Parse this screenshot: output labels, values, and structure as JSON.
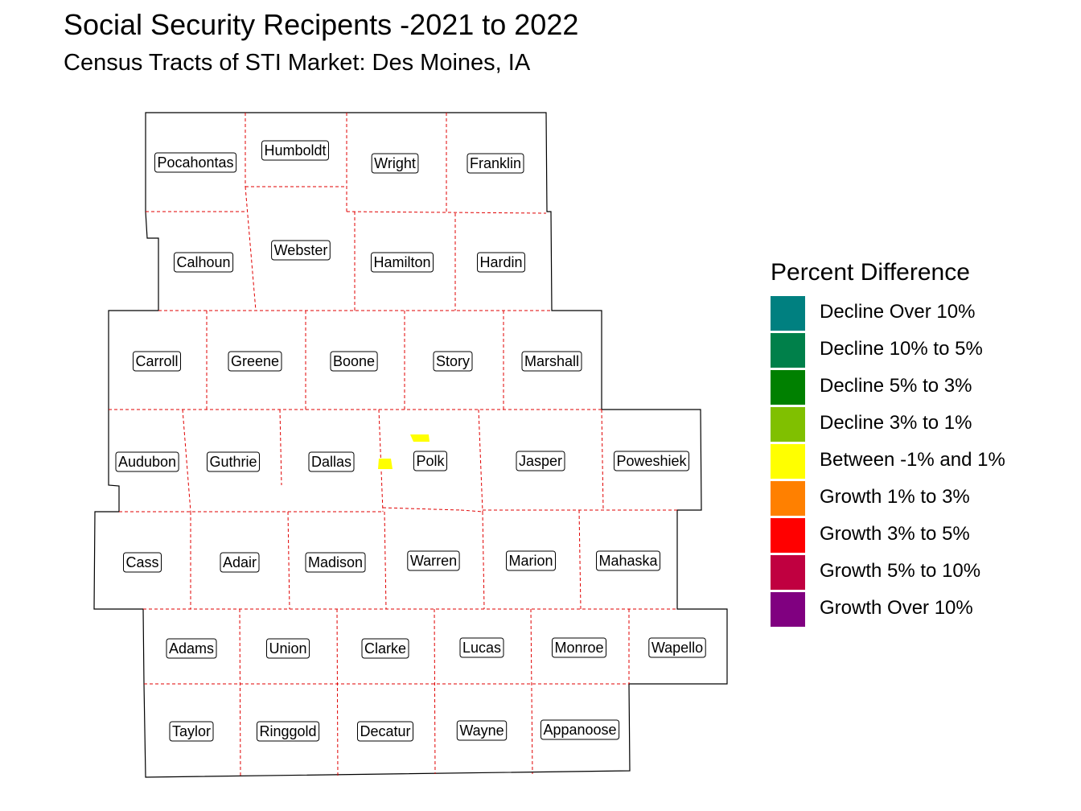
{
  "title": "Social Security Recipents -2021 to 2022",
  "subtitle": "Census Tracts of STI Market: Des Moines, IA",
  "legend": {
    "title": "Percent Difference",
    "items": [
      {
        "label": "Decline Over 10%",
        "color": "#008080"
      },
      {
        "label": "Decline 10% to 5%",
        "color": "#00804A"
      },
      {
        "label": "Decline 5% to 3%",
        "color": "#008000"
      },
      {
        "label": "Decline 3% to 1%",
        "color": "#80C000"
      },
      {
        "label": "Between -1% and 1%",
        "color": "#FFFF00"
      },
      {
        "label": "Growth 1% to 3%",
        "color": "#FF8000"
      },
      {
        "label": "Growth 3% to 5%",
        "color": "#FF0000"
      },
      {
        "label": "Growth 5% to 10%",
        "color": "#C00040"
      },
      {
        "label": "Growth Over 10%",
        "color": "#800080"
      }
    ]
  },
  "colors": {
    "county_border": "#E00000",
    "outline": "#000000",
    "highlight": "#FFFF00"
  },
  "counties": [
    "Pocahontas",
    "Humboldt",
    "Wright",
    "Franklin",
    "Calhoun",
    "Webster",
    "Hamilton",
    "Hardin",
    "Carroll",
    "Greene",
    "Boone",
    "Story",
    "Marshall",
    "Audubon",
    "Guthrie",
    "Dallas",
    "Polk",
    "Jasper",
    "Poweshiek",
    "Cass",
    "Adair",
    "Madison",
    "Warren",
    "Marion",
    "Mahaska",
    "Adams",
    "Union",
    "Clarke",
    "Lucas",
    "Monroe",
    "Wapello",
    "Taylor",
    "Ringgold",
    "Decatur",
    "Wayne",
    "Appanoose"
  ]
}
